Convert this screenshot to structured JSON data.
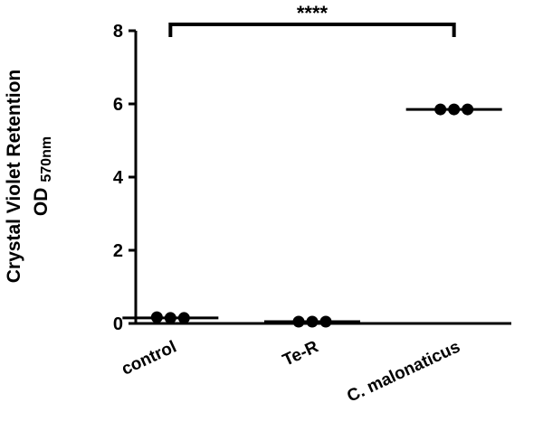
{
  "chart_data": {
    "type": "dot",
    "y_label": "Crystal Violet Retention",
    "y_label_2": "OD",
    "y_label_sub": "570nm",
    "annotation": "****",
    "categories": [
      "control",
      "Te-R",
      "C. malonaticus"
    ],
    "values": [
      [
        0.17,
        0.15,
        0.15
      ],
      [
        0.05,
        0.05,
        0.05
      ],
      [
        5.85,
        5.85,
        5.85
      ]
    ],
    "means": [
      0.15,
      0.05,
      5.85
    ],
    "color": "#000000",
    "ylim": [
      0,
      8
    ],
    "yticks": [
      0,
      2,
      4,
      6,
      8
    ],
    "grid": false
  }
}
